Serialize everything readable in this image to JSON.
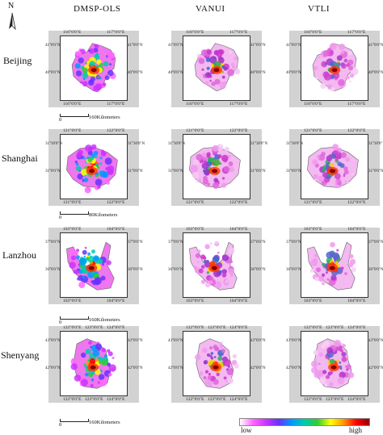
{
  "north_label": "N",
  "columns": [
    "DMSP-OLS",
    "VANUI",
    "VTLI"
  ],
  "cities": [
    {
      "name": "Beijing",
      "top_ticks": [
        "116°0'0\"E",
        "117°0'0\"E"
      ],
      "left_ticks": [
        "41°0'0\"N",
        "40°0'0\"N"
      ],
      "right_ticks": [
        "41°0'0\"N",
        "40°0'0\"N"
      ],
      "bottom_ticks": [
        "116°0'0\"E",
        "117°0'0\"E"
      ],
      "scale_label": "160Kilometers"
    },
    {
      "name": "Shanghai",
      "top_ticks": [
        "121°0'0\"E",
        "122°0'0\"E"
      ],
      "left_ticks": [
        "31°30'0\"N",
        "31°0'0\"N"
      ],
      "right_ticks": [
        "31°30'0\"N",
        "31°0'0\"N"
      ],
      "bottom_ticks": [
        "121°0'0\"E",
        "122°0'0\"E"
      ],
      "scale_label": "80Kilometers"
    },
    {
      "name": "Lanzhou",
      "top_ticks": [
        "103°0'0\"E",
        "104°0'0\"E"
      ],
      "left_ticks": [
        "37°0'0\"N",
        "36°0'0\"N"
      ],
      "right_ticks": [
        "37°0'0\"N",
        "36°0'0\"N"
      ],
      "bottom_ticks": [
        "103°0'0\"E",
        "104°0'0\"E"
      ],
      "scale_label": "160Kilometers"
    },
    {
      "name": "Shenyang",
      "top_ticks": [
        "122°0'0\"E",
        "123°0'0\"E",
        "124°0'0\"E"
      ],
      "left_ticks": [
        "43°0'0\"N",
        "42°0'0\"N"
      ],
      "right_ticks": [
        "43°0'0\"N",
        "42°0'0\"N"
      ],
      "bottom_ticks": [
        "122°0'0\"E",
        "123°0'0\"E",
        "124°0'0\"E"
      ],
      "scale_label": "160Kilometers"
    }
  ],
  "scale_zero": "0",
  "legend": {
    "low": "low",
    "high": "high",
    "gradient": [
      "#ffffff",
      "#ff66ff",
      "#cc33ff",
      "#6633ff",
      "#0099ff",
      "#00ccaa",
      "#33cc33",
      "#ffff00",
      "#ff9900",
      "#ff0000",
      "#990000"
    ]
  }
}
